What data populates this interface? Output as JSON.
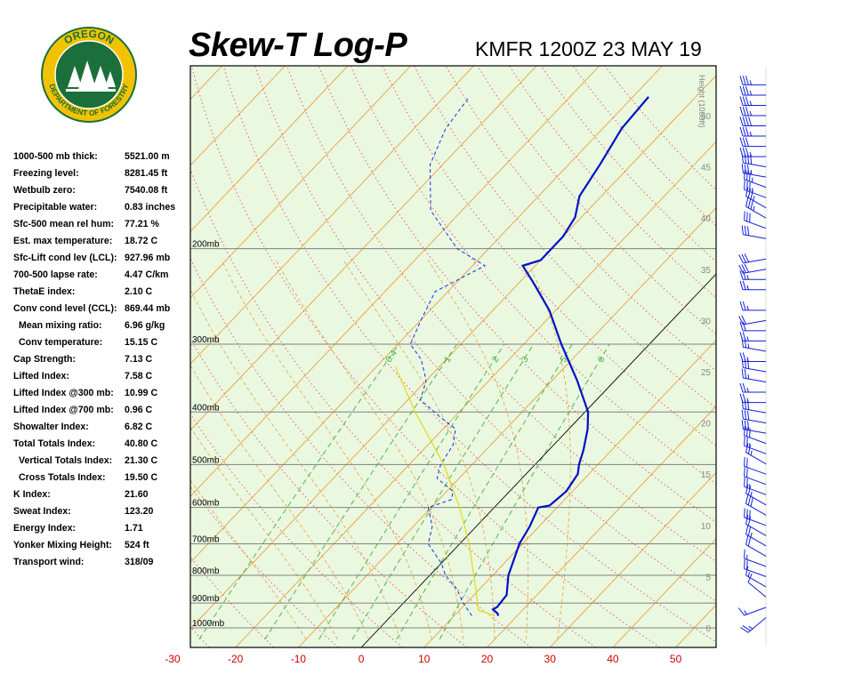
{
  "logo": {
    "text_top": "OREGON",
    "text_bottom": "DEPARTMENT OF FORESTRY",
    "colors": {
      "ring": "#f2c200",
      "inner": "#1b6f3a",
      "text": "#ffffff"
    }
  },
  "header": {
    "title": "Skew-T Log-P",
    "station": "KMFR 1200Z 23 MAY 19"
  },
  "stats": [
    {
      "label": "1000-500 mb thick:",
      "value": "5521.00 m"
    },
    {
      "label": "Freezing level:",
      "value": "8281.45 ft"
    },
    {
      "label": "Wetbulb zero:",
      "value": "7540.08 ft"
    },
    {
      "label": "Precipitable water:",
      "value": "0.83 inches"
    },
    {
      "label": "Sfc-500 mean rel hum:",
      "value": "77.21 %"
    },
    {
      "label": "Est. max temperature:",
      "value": "18.72 C"
    },
    {
      "label": "Sfc-Lift cond lev (LCL):",
      "value": "927.96 mb"
    },
    {
      "label": "700-500 lapse rate:",
      "value": "4.47 C/km"
    },
    {
      "label": "ThetaE index:",
      "value": "2.10 C"
    },
    {
      "label": "Conv cond level (CCL):",
      "value": "869.44 mb"
    },
    {
      "label": "Mean mixing ratio:",
      "value": "6.96 g/kg",
      "indent": true
    },
    {
      "label": "Conv temperature:",
      "value": "15.15 C",
      "indent": true
    },
    {
      "label": "Cap Strength:",
      "value": "7.13 C"
    },
    {
      "label": "Lifted Index:",
      "value": "7.58 C"
    },
    {
      "label": "Lifted Index @300 mb:",
      "value": "10.99 C"
    },
    {
      "label": "Lifted Index @700 mb:",
      "value": "0.96 C"
    },
    {
      "label": "Showalter Index:",
      "value": "6.82 C"
    },
    {
      "label": "Total Totals Index:",
      "value": "40.80 C"
    },
    {
      "label": "Vertical Totals Index:",
      "value": "21.30 C",
      "indent": true
    },
    {
      "label": "Cross Totals Index:",
      "value": "19.50 C",
      "indent": true
    },
    {
      "label": "K Index:",
      "value": "21.60"
    },
    {
      "label": "Sweat Index:",
      "value": "123.20"
    },
    {
      "label": "Energy Index:",
      "value": "1.71"
    },
    {
      "label": "Yonker Mixing Height:",
      "value": "524 ft"
    },
    {
      "label": "Transport wind:",
      "value": "318/09"
    }
  ],
  "chart_data": {
    "type": "line",
    "title": "Skew-T Log-P",
    "subtitle": "KMFR 1200Z 23 MAY 19",
    "xlabel": "",
    "ylabel": "",
    "x_ticks": [
      -30,
      -20,
      -10,
      0,
      10,
      20,
      30,
      40,
      50
    ],
    "xlim": [
      -30,
      53
    ],
    "pressure_levels": [
      {
        "p": 200,
        "label": "200mb"
      },
      {
        "p": 300,
        "label": "300mb"
      },
      {
        "p": 400,
        "label": "400mb"
      },
      {
        "p": 500,
        "label": "500mb"
      },
      {
        "p": 600,
        "label": "600mb"
      },
      {
        "p": 700,
        "label": "700mb"
      },
      {
        "p": 800,
        "label": "800mb"
      },
      {
        "p": 900,
        "label": "900mb"
      },
      {
        "p": 1000,
        "label": "1000mb"
      }
    ],
    "height_axis_label": "Height (1000ft)",
    "height_ticks": [
      "0",
      "5",
      "10",
      "15",
      "20",
      "25",
      "30",
      "35",
      "40",
      "45",
      "50"
    ],
    "height_ticks_kft": [
      0,
      5,
      10,
      15,
      20,
      25,
      30,
      35,
      40,
      45,
      50
    ],
    "mixing_ratio_labels": [
      "0.4",
      "1",
      "2",
      "3",
      "5",
      "8"
    ],
    "mixing_ratio_values": [
      0.4,
      1,
      2,
      3,
      5,
      8
    ],
    "colors": {
      "temperature": "#0010c8",
      "dewpoint": "#1030e8",
      "parcel": "#e0d800",
      "isotherm": "#e8a040",
      "dry_adiabat": "#e86060",
      "moist_adiabat": "#e8a040",
      "mixing_ratio": "#40b040",
      "background": "#eaf8e0",
      "pressure_line": "#808080",
      "tick_label": "#cc0000",
      "wind_barb": "#1020d8"
    },
    "series": [
      {
        "kind": "temperature",
        "points": [
          {
            "p": 950,
            "t": 17.0
          },
          {
            "p": 940,
            "t": 16.5
          },
          {
            "p": 925,
            "t": 15.2
          },
          {
            "p": 915,
            "t": 15.5
          },
          {
            "p": 870,
            "t": 15.2
          },
          {
            "p": 800,
            "t": 12.5
          },
          {
            "p": 700,
            "t": 9.5
          },
          {
            "p": 650,
            "t": 8.5
          },
          {
            "p": 600,
            "t": 7.0
          },
          {
            "p": 595,
            "t": 8.5
          },
          {
            "p": 560,
            "t": 9.0
          },
          {
            "p": 520,
            "t": 8.2
          },
          {
            "p": 500,
            "t": 7.0
          },
          {
            "p": 470,
            "t": 5.5
          },
          {
            "p": 430,
            "t": 3.0
          },
          {
            "p": 400,
            "t": 0.5
          },
          {
            "p": 350,
            "t": -6.0
          },
          {
            "p": 300,
            "t": -14.0
          },
          {
            "p": 260,
            "t": -21.0
          },
          {
            "p": 230,
            "t": -28.0
          },
          {
            "p": 215,
            "t": -32.0
          },
          {
            "p": 210,
            "t": -30.0
          },
          {
            "p": 190,
            "t": -30.0
          },
          {
            "p": 175,
            "t": -31.0
          },
          {
            "p": 160,
            "t": -33.5
          },
          {
            "p": 140,
            "t": -35.0
          },
          {
            "p": 120,
            "t": -37.0
          },
          {
            "p": 105,
            "t": -37.5
          }
        ]
      },
      {
        "kind": "dewpoint",
        "points": [
          {
            "p": 950,
            "t": 12.8
          },
          {
            "p": 900,
            "t": 9.5
          },
          {
            "p": 850,
            "t": 6.5
          },
          {
            "p": 800,
            "t": 2.5
          },
          {
            "p": 760,
            "t": 0.0
          },
          {
            "p": 700,
            "t": -5.0
          },
          {
            "p": 650,
            "t": -7.0
          },
          {
            "p": 600,
            "t": -10.5
          },
          {
            "p": 580,
            "t": -8.0
          },
          {
            "p": 560,
            "t": -9.0
          },
          {
            "p": 530,
            "t": -13.5
          },
          {
            "p": 500,
            "t": -15.0
          },
          {
            "p": 460,
            "t": -16.0
          },
          {
            "p": 430,
            "t": -18.0
          },
          {
            "p": 410,
            "t": -22.0
          },
          {
            "p": 380,
            "t": -28.0
          },
          {
            "p": 350,
            "t": -30.0
          },
          {
            "p": 320,
            "t": -34.0
          },
          {
            "p": 300,
            "t": -38.0
          },
          {
            "p": 270,
            "t": -40.0
          },
          {
            "p": 240,
            "t": -42.0
          },
          {
            "p": 215,
            "t": -38.0
          },
          {
            "p": 200,
            "t": -45.0
          },
          {
            "p": 170,
            "t": -55.0
          },
          {
            "p": 140,
            "t": -62.0
          },
          {
            "p": 120,
            "t": -65.0
          },
          {
            "p": 105,
            "t": -66.0
          }
        ]
      },
      {
        "kind": "parcel",
        "points": [
          {
            "p": 950,
            "t": 16.5
          },
          {
            "p": 928,
            "t": 13.0
          },
          {
            "p": 850,
            "t": 9.5
          },
          {
            "p": 800,
            "t": 7.0
          },
          {
            "p": 700,
            "t": 1.5
          },
          {
            "p": 600,
            "t": -5.5
          },
          {
            "p": 500,
            "t": -14.5
          },
          {
            "p": 400,
            "t": -27.0
          },
          {
            "p": 330,
            "t": -37.0
          }
        ]
      }
    ],
    "wind_barbs": [
      {
        "kft": 1,
        "dir": 230,
        "kt": 25
      },
      {
        "kft": 2,
        "dir": 250,
        "kt": 15
      },
      {
        "kft": 3,
        "dir": 310,
        "kt": 10
      },
      {
        "kft": 4,
        "dir": 300,
        "kt": 15
      },
      {
        "kft": 5,
        "dir": 290,
        "kt": 20
      },
      {
        "kft": 6,
        "dir": 290,
        "kt": 15
      },
      {
        "kft": 7,
        "dir": 300,
        "kt": 20
      },
      {
        "kft": 8,
        "dir": 300,
        "kt": 25
      },
      {
        "kft": 9,
        "dir": 300,
        "kt": 20
      },
      {
        "kft": 10,
        "dir": 290,
        "kt": 30
      },
      {
        "kft": 11,
        "dir": 300,
        "kt": 30
      },
      {
        "kft": 12,
        "dir": 300,
        "kt": 25
      },
      {
        "kft": 13,
        "dir": 290,
        "kt": 25
      },
      {
        "kft": 14,
        "dir": 290,
        "kt": 20
      },
      {
        "kft": 15,
        "dir": 290,
        "kt": 20
      },
      {
        "kft": 16,
        "dir": 300,
        "kt": 25
      },
      {
        "kft": 17,
        "dir": 290,
        "kt": 25
      },
      {
        "kft": 18,
        "dir": 290,
        "kt": 30
      },
      {
        "kft": 19,
        "dir": 280,
        "kt": 30
      },
      {
        "kft": 20,
        "dir": 280,
        "kt": 30
      },
      {
        "kft": 21,
        "dir": 280,
        "kt": 30
      },
      {
        "kft": 22,
        "dir": 270,
        "kt": 25
      },
      {
        "kft": 23,
        "dir": 270,
        "kt": 25
      },
      {
        "kft": 24,
        "dir": 280,
        "kt": 25
      },
      {
        "kft": 25,
        "dir": 280,
        "kt": 30
      },
      {
        "kft": 26,
        "dir": 270,
        "kt": 25
      },
      {
        "kft": 27,
        "dir": 280,
        "kt": 25
      },
      {
        "kft": 28,
        "dir": 270,
        "kt": 25
      },
      {
        "kft": 29,
        "dir": 270,
        "kt": 20
      },
      {
        "kft": 30,
        "dir": 260,
        "kt": 20
      },
      {
        "kft": 31,
        "dir": 270,
        "kt": 25
      },
      {
        "kft": 33,
        "dir": 270,
        "kt": 25
      },
      {
        "kft": 34,
        "dir": 270,
        "kt": 25
      },
      {
        "kft": 35,
        "dir": 260,
        "kt": 30
      },
      {
        "kft": 36,
        "dir": 260,
        "kt": 30
      },
      {
        "kft": 38,
        "dir": 280,
        "kt": 30
      },
      {
        "kft": 39,
        "dir": 290,
        "kt": 30
      },
      {
        "kft": 40,
        "dir": 300,
        "kt": 35
      },
      {
        "kft": 41,
        "dir": 300,
        "kt": 35
      },
      {
        "kft": 42,
        "dir": 290,
        "kt": 35
      },
      {
        "kft": 43,
        "dir": 290,
        "kt": 35
      },
      {
        "kft": 44,
        "dir": 280,
        "kt": 35
      },
      {
        "kft": 45,
        "dir": 280,
        "kt": 40
      },
      {
        "kft": 46,
        "dir": 270,
        "kt": 35
      },
      {
        "kft": 47,
        "dir": 270,
        "kt": 30
      },
      {
        "kft": 48,
        "dir": 270,
        "kt": 35
      },
      {
        "kft": 49,
        "dir": 270,
        "kt": 40
      },
      {
        "kft": 50,
        "dir": 270,
        "kt": 35
      },
      {
        "kft": 51,
        "dir": 270,
        "kt": 35
      },
      {
        "kft": 52,
        "dir": 270,
        "kt": 35
      },
      {
        "kft": 53,
        "dir": 270,
        "kt": 35
      }
    ]
  }
}
